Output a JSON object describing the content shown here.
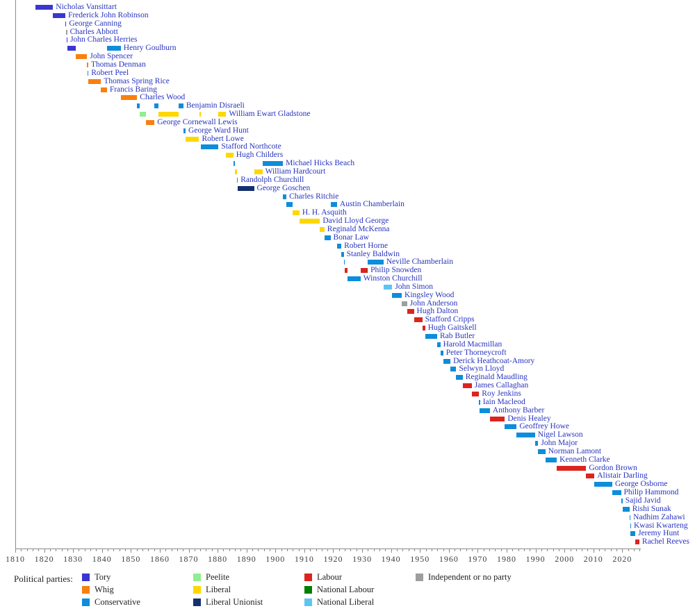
{
  "chart_data": {
    "type": "bar",
    "subtype": "horizontal-gantt-timeline",
    "description": "Timeline of Chancellors of the Exchequer by term in office, coloured by political party",
    "axis": {
      "min": 1810,
      "max": 2026.4,
      "major_step": 10,
      "minor_step": 2,
      "tick_labels": [
        "1810",
        "1820",
        "1830",
        "1840",
        "1850",
        "1860",
        "1870",
        "1880",
        "1890",
        "1900",
        "1910",
        "1920",
        "1930",
        "1940",
        "1950",
        "1960",
        "1970",
        "1980",
        "1990",
        "2000",
        "2010",
        "2020"
      ]
    },
    "legend_title": "Political parties:",
    "parties": [
      {
        "name": "Tory",
        "color": "#3A36D1"
      },
      {
        "name": "Whig",
        "color": "#F8800F"
      },
      {
        "name": "Conservative",
        "color": "#0D8DDB"
      },
      {
        "name": "Peelite",
        "color": "#90EE90"
      },
      {
        "name": "Liberal",
        "color": "#FFD700"
      },
      {
        "name": "Liberal Unionist",
        "color": "#14306E"
      },
      {
        "name": "Labour",
        "color": "#DC241F"
      },
      {
        "name": "National Labour",
        "color": "#008000"
      },
      {
        "name": "National Liberal",
        "color": "#5BC5F2"
      },
      {
        "name": "Independent or no party",
        "color": "#9E9E9E"
      }
    ],
    "legend_columns": [
      [
        "Tory",
        "Whig",
        "Conservative"
      ],
      [
        "Peelite",
        "Liberal",
        "Liberal Unionist"
      ],
      [
        "Labour",
        "National Labour",
        "National Liberal"
      ],
      [
        "Independent or no party"
      ]
    ],
    "chancellors": [
      {
        "name": "Nicholas Vansittart",
        "segments": [
          {
            "party": "Tory",
            "start": 1817.0,
            "end": 1823.05
          }
        ]
      },
      {
        "name": "Frederick John Robinson",
        "segments": [
          {
            "party": "Tory",
            "start": 1823.05,
            "end": 1827.3
          }
        ]
      },
      {
        "name": "George Canning",
        "segments": [
          {
            "party": "Tory",
            "start": 1827.3,
            "end": 1827.6
          }
        ]
      },
      {
        "name": "Charles Abbott",
        "segments": [
          {
            "party": "Independent or no party",
            "start": 1827.6,
            "end": 1827.7
          }
        ]
      },
      {
        "name": "John Charles Herries",
        "segments": [
          {
            "party": "Tory",
            "start": 1827.7,
            "end": 1828.05
          }
        ]
      },
      {
        "name": "Henry Goulburn",
        "segments": [
          {
            "party": "Tory",
            "start": 1828.05,
            "end": 1830.88
          },
          {
            "party": "Conservative",
            "start": 1841.7,
            "end": 1846.5
          }
        ]
      },
      {
        "name": "John Spencer",
        "segments": [
          {
            "party": "Whig",
            "start": 1830.88,
            "end": 1834.87
          }
        ]
      },
      {
        "name": "Thomas Denman",
        "segments": [
          {
            "party": "Whig",
            "start": 1834.87,
            "end": 1834.97
          }
        ]
      },
      {
        "name": "Robert Peel",
        "segments": [
          {
            "party": "Conservative",
            "start": 1834.95,
            "end": 1835.3
          }
        ]
      },
      {
        "name": "Thomas Spring Rice",
        "segments": [
          {
            "party": "Whig",
            "start": 1835.3,
            "end": 1839.65
          }
        ]
      },
      {
        "name": "Francis Baring",
        "segments": [
          {
            "party": "Whig",
            "start": 1839.65,
            "end": 1841.7
          }
        ]
      },
      {
        "name": "Charles Wood",
        "segments": [
          {
            "party": "Whig",
            "start": 1846.5,
            "end": 1852.15
          }
        ]
      },
      {
        "name": "Benjamin Disraeli",
        "segments": [
          {
            "party": "Conservative",
            "start": 1852.15,
            "end": 1852.97
          },
          {
            "party": "Conservative",
            "start": 1858.15,
            "end": 1859.45
          },
          {
            "party": "Conservative",
            "start": 1866.5,
            "end": 1868.15
          }
        ]
      },
      {
        "name": "William Ewart Gladstone",
        "segments": [
          {
            "party": "Peelite",
            "start": 1852.97,
            "end": 1855.15
          },
          {
            "party": "Liberal",
            "start": 1859.45,
            "end": 1866.5
          },
          {
            "party": "Liberal",
            "start": 1873.6,
            "end": 1874.1
          },
          {
            "party": "Liberal",
            "start": 1880.3,
            "end": 1882.95
          }
        ]
      },
      {
        "name": "George Cornewall Lewis",
        "segments": [
          {
            "party": "Whig",
            "start": 1855.15,
            "end": 1858.15
          }
        ]
      },
      {
        "name": "George Ward Hunt",
        "segments": [
          {
            "party": "Conservative",
            "start": 1868.15,
            "end": 1868.92
          }
        ]
      },
      {
        "name": "Robert Lowe",
        "segments": [
          {
            "party": "Liberal",
            "start": 1868.92,
            "end": 1873.6
          }
        ]
      },
      {
        "name": "Stafford Northcote",
        "segments": [
          {
            "party": "Conservative",
            "start": 1874.1,
            "end": 1880.3
          }
        ]
      },
      {
        "name": "Hugh Childers",
        "segments": [
          {
            "party": "Liberal",
            "start": 1882.95,
            "end": 1885.45
          }
        ]
      },
      {
        "name": "Michael Hicks Beach",
        "segments": [
          {
            "party": "Conservative",
            "start": 1885.45,
            "end": 1886.1
          },
          {
            "party": "Conservative",
            "start": 1895.5,
            "end": 1902.6
          }
        ]
      },
      {
        "name": "William Hardcourt",
        "segments": [
          {
            "party": "Liberal",
            "start": 1886.1,
            "end": 1886.6
          },
          {
            "party": "Liberal",
            "start": 1892.6,
            "end": 1895.5
          }
        ]
      },
      {
        "name": "Randolph Churchill",
        "segments": [
          {
            "party": "Conservative",
            "start": 1886.6,
            "end": 1887.0
          }
        ]
      },
      {
        "name": "George Goschen",
        "segments": [
          {
            "party": "Liberal Unionist",
            "start": 1887.0,
            "end": 1892.6
          }
        ]
      },
      {
        "name": "Charles Ritchie",
        "segments": [
          {
            "party": "Conservative",
            "start": 1902.6,
            "end": 1903.8
          }
        ]
      },
      {
        "name": "Austin Chamberlain",
        "segments": [
          {
            "party": "Conservative",
            "start": 1903.8,
            "end": 1905.95
          },
          {
            "party": "Conservative",
            "start": 1919.05,
            "end": 1921.3
          }
        ]
      },
      {
        "name": "H. H. Asquith",
        "segments": [
          {
            "party": "Liberal",
            "start": 1905.95,
            "end": 1908.3
          }
        ]
      },
      {
        "name": "David Lloyd George",
        "segments": [
          {
            "party": "Liberal",
            "start": 1908.3,
            "end": 1915.4
          }
        ]
      },
      {
        "name": "Reginald McKenna",
        "segments": [
          {
            "party": "Liberal",
            "start": 1915.4,
            "end": 1916.95
          }
        ]
      },
      {
        "name": "Bonar Law",
        "segments": [
          {
            "party": "Conservative",
            "start": 1916.95,
            "end": 1919.05
          }
        ]
      },
      {
        "name": "Robert Horne",
        "segments": [
          {
            "party": "Conservative",
            "start": 1921.3,
            "end": 1922.8
          }
        ]
      },
      {
        "name": "Stanley Baldwin",
        "segments": [
          {
            "party": "Conservative",
            "start": 1922.8,
            "end": 1923.65
          }
        ]
      },
      {
        "name": "Neville Chamberlain",
        "segments": [
          {
            "party": "Conservative",
            "start": 1923.65,
            "end": 1924.07
          },
          {
            "party": "Conservative",
            "start": 1931.85,
            "end": 1937.4
          }
        ]
      },
      {
        "name": "Philip Snowden",
        "segments": [
          {
            "party": "Labour",
            "start": 1924.07,
            "end": 1924.85
          },
          {
            "party": "Labour",
            "start": 1929.45,
            "end": 1931.6
          },
          {
            "party": "National Labour",
            "start": 1931.6,
            "end": 1931.85
          }
        ]
      },
      {
        "name": "Winston Churchill",
        "segments": [
          {
            "party": "Conservative",
            "start": 1924.85,
            "end": 1929.45
          }
        ]
      },
      {
        "name": "John Simon",
        "segments": [
          {
            "party": "National Liberal",
            "start": 1937.4,
            "end": 1940.4
          }
        ]
      },
      {
        "name": "Kingsley Wood",
        "segments": [
          {
            "party": "Conservative",
            "start": 1940.4,
            "end": 1943.7
          }
        ]
      },
      {
        "name": "John Anderson",
        "segments": [
          {
            "party": "Independent or no party",
            "start": 1943.7,
            "end": 1945.55
          }
        ]
      },
      {
        "name": "Hugh Dalton",
        "segments": [
          {
            "party": "Labour",
            "start": 1945.55,
            "end": 1947.9
          }
        ]
      },
      {
        "name": "Stafford Cripps",
        "segments": [
          {
            "party": "Labour",
            "start": 1947.9,
            "end": 1950.8
          }
        ]
      },
      {
        "name": "Hugh Gaitskell",
        "segments": [
          {
            "party": "Labour",
            "start": 1950.8,
            "end": 1951.8
          }
        ]
      },
      {
        "name": "Rab Butler",
        "segments": [
          {
            "party": "Conservative",
            "start": 1951.8,
            "end": 1955.95
          }
        ]
      },
      {
        "name": "Harold Macmillan",
        "segments": [
          {
            "party": "Conservative",
            "start": 1955.95,
            "end": 1957.05
          }
        ]
      },
      {
        "name": "Peter Thorneycroft",
        "segments": [
          {
            "party": "Conservative",
            "start": 1957.05,
            "end": 1958.05
          }
        ]
      },
      {
        "name": "Derick Heathcoat-Amory",
        "segments": [
          {
            "party": "Conservative",
            "start": 1958.05,
            "end": 1960.55
          }
        ]
      },
      {
        "name": "Selwyn Lloyd",
        "segments": [
          {
            "party": "Conservative",
            "start": 1960.55,
            "end": 1962.55
          }
        ]
      },
      {
        "name": "Reginald Maudling",
        "segments": [
          {
            "party": "Conservative",
            "start": 1962.55,
            "end": 1964.8
          }
        ]
      },
      {
        "name": "James Callaghan",
        "segments": [
          {
            "party": "Labour",
            "start": 1964.8,
            "end": 1967.9
          }
        ]
      },
      {
        "name": "Roy Jenkins",
        "segments": [
          {
            "party": "Labour",
            "start": 1967.9,
            "end": 1970.45
          }
        ]
      },
      {
        "name": "Iain Macleod",
        "segments": [
          {
            "party": "Conservative",
            "start": 1970.45,
            "end": 1970.58
          }
        ]
      },
      {
        "name": "Anthony Barber",
        "segments": [
          {
            "party": "Conservative",
            "start": 1970.58,
            "end": 1974.2
          }
        ]
      },
      {
        "name": "Denis Healey",
        "segments": [
          {
            "party": "Labour",
            "start": 1974.2,
            "end": 1979.35
          }
        ]
      },
      {
        "name": "Geoffrey Howe",
        "segments": [
          {
            "party": "Conservative",
            "start": 1979.35,
            "end": 1983.45
          }
        ]
      },
      {
        "name": "Nigel Lawson",
        "segments": [
          {
            "party": "Conservative",
            "start": 1983.45,
            "end": 1989.8
          }
        ]
      },
      {
        "name": "John Major",
        "segments": [
          {
            "party": "Conservative",
            "start": 1989.8,
            "end": 1990.9
          }
        ]
      },
      {
        "name": "Norman Lamont",
        "segments": [
          {
            "party": "Conservative",
            "start": 1990.9,
            "end": 1993.4
          }
        ]
      },
      {
        "name": "Kenneth Clarke",
        "segments": [
          {
            "party": "Conservative",
            "start": 1993.4,
            "end": 1997.35
          }
        ]
      },
      {
        "name": "Gordon Brown",
        "segments": [
          {
            "party": "Labour",
            "start": 1997.35,
            "end": 2007.5
          }
        ]
      },
      {
        "name": "Alistair Darling",
        "segments": [
          {
            "party": "Labour",
            "start": 2007.5,
            "end": 2010.35
          }
        ]
      },
      {
        "name": "George Osborne",
        "segments": [
          {
            "party": "Conservative",
            "start": 2010.35,
            "end": 2016.55
          }
        ]
      },
      {
        "name": "Philip Hammond",
        "segments": [
          {
            "party": "Conservative",
            "start": 2016.55,
            "end": 2019.55
          }
        ]
      },
      {
        "name": "Sajid Javid",
        "segments": [
          {
            "party": "Conservative",
            "start": 2019.55,
            "end": 2020.1
          }
        ]
      },
      {
        "name": "Rishi Sunak",
        "segments": [
          {
            "party": "Conservative",
            "start": 2020.1,
            "end": 2022.5
          }
        ]
      },
      {
        "name": "Nadhim Zahawi",
        "segments": [
          {
            "party": "Conservative",
            "start": 2022.5,
            "end": 2022.68
          }
        ]
      },
      {
        "name": "Kwasi Kwarteng",
        "segments": [
          {
            "party": "Conservative",
            "start": 2022.7,
            "end": 2022.8
          }
        ]
      },
      {
        "name": "Jeremy Hunt",
        "segments": [
          {
            "party": "Conservative",
            "start": 2022.8,
            "end": 2024.5
          }
        ]
      },
      {
        "name": "Rachel Reeves",
        "segments": [
          {
            "party": "Labour",
            "start": 2024.5,
            "end": 2025.9
          }
        ]
      }
    ],
    "styles": {
      "name_link_color": "#2733BF",
      "axis_color": "#8A8A8A",
      "tick_label_color": "#3C3C3C",
      "legend_text_color": "#222222",
      "background": "#FFFFFF"
    }
  }
}
